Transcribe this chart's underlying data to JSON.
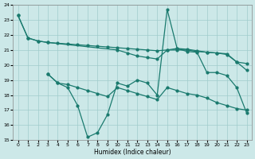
{
  "xlabel": "Humidex (Indice chaleur)",
  "ylabel": "",
  "xlim": [
    -0.5,
    23.5
  ],
  "ylim": [
    15,
    24
  ],
  "yticks": [
    15,
    16,
    17,
    18,
    19,
    20,
    21,
    22,
    23,
    24
  ],
  "xticks": [
    0,
    1,
    2,
    3,
    4,
    5,
    6,
    7,
    8,
    9,
    10,
    11,
    12,
    13,
    14,
    15,
    16,
    17,
    18,
    19,
    20,
    21,
    22,
    23
  ],
  "bg_color": "#cce8e8",
  "line_color": "#1a7a6e",
  "grid_color": "#a0cccc",
  "line1_x": [
    0,
    1,
    2,
    3,
    4,
    5,
    6,
    7,
    8,
    9,
    10,
    11,
    12,
    13,
    14,
    15,
    16,
    17,
    18,
    19,
    20,
    21,
    22,
    23
  ],
  "line1_y": [
    23.3,
    21.8,
    21.6,
    21.5,
    21.45,
    21.4,
    21.35,
    21.3,
    21.25,
    21.2,
    21.15,
    21.1,
    21.05,
    21.0,
    20.95,
    21.0,
    21.0,
    21.0,
    20.9,
    20.85,
    20.8,
    20.75,
    20.2,
    20.1
  ],
  "line2_x": [
    0,
    1,
    2,
    3,
    10,
    11,
    12,
    13,
    14,
    15,
    16,
    17,
    18,
    19,
    20,
    21,
    22,
    23
  ],
  "line2_y": [
    23.3,
    21.8,
    21.6,
    21.5,
    21.0,
    20.8,
    20.6,
    20.5,
    20.4,
    21.0,
    21.1,
    21.05,
    20.95,
    20.85,
    20.8,
    20.7,
    20.2,
    19.65
  ],
  "line3_x": [
    3,
    4,
    5,
    6,
    7,
    8,
    9,
    10,
    11,
    12,
    13,
    14,
    15,
    16,
    17,
    18,
    19,
    20,
    21,
    22,
    23
  ],
  "line3_y": [
    19.4,
    18.8,
    18.5,
    17.3,
    15.2,
    15.5,
    16.7,
    18.8,
    18.6,
    19.0,
    18.8,
    18.0,
    23.7,
    21.1,
    20.9,
    20.85,
    19.5,
    19.5,
    19.3,
    18.5,
    16.8
  ],
  "line4_x": [
    3,
    4,
    5,
    6,
    7,
    8,
    9,
    10,
    11,
    12,
    13,
    14,
    15,
    16,
    17,
    18,
    19,
    20,
    21,
    22,
    23
  ],
  "line4_y": [
    19.4,
    18.8,
    18.7,
    18.5,
    18.3,
    18.1,
    17.9,
    18.5,
    18.3,
    18.1,
    17.9,
    17.7,
    18.5,
    18.3,
    18.1,
    18.0,
    17.8,
    17.5,
    17.3,
    17.1,
    17.0
  ]
}
